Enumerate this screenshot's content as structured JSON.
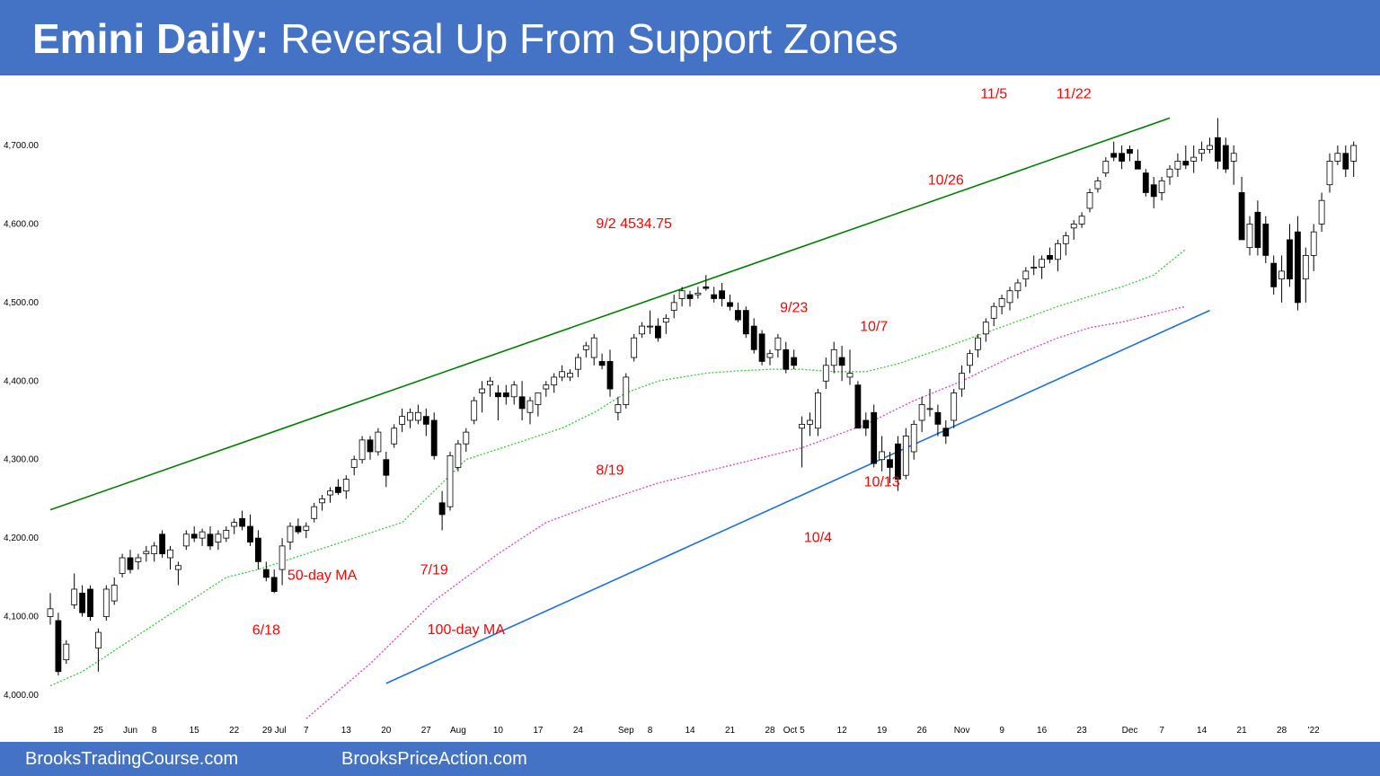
{
  "header": {
    "title_bold": "Emini Daily:",
    "title_rest": " Reversal Up From Support Zones"
  },
  "footer": {
    "left": "BrooksTradingCourse.com",
    "right": "BrooksPriceAction.com"
  },
  "colors": {
    "banner": "#4472c4",
    "trendline_top": "#008000",
    "trendline_bottom": "#1e6fe0",
    "ma50": "#33cc33",
    "ma100": "#e040c0",
    "annotation": "#ff0000"
  },
  "chart_data": {
    "type": "candlestick",
    "ylim": [
      3990,
      4740
    ],
    "y_ticks": [
      {
        "value": 4000,
        "label": "4,000.00"
      },
      {
        "value": 4100,
        "label": "4,100.00"
      },
      {
        "value": 4200,
        "label": "4,200.00"
      },
      {
        "value": 4300,
        "label": "4,300.00"
      },
      {
        "value": 4400,
        "label": "4,400.00"
      },
      {
        "value": 4500,
        "label": "4,500.00"
      },
      {
        "value": 4600,
        "label": "4,600.00"
      },
      {
        "value": 4700,
        "label": "4,700.00"
      }
    ],
    "x_ticks": [
      {
        "i": 1,
        "label": "18"
      },
      {
        "i": 6,
        "label": "25"
      },
      {
        "i": 10,
        "label": "Jun"
      },
      {
        "i": 13,
        "label": "8"
      },
      {
        "i": 18,
        "label": "15"
      },
      {
        "i": 23,
        "label": "22"
      },
      {
        "i": 28,
        "label": "29 Jul"
      },
      {
        "i": 32,
        "label": "7"
      },
      {
        "i": 37,
        "label": "13"
      },
      {
        "i": 42,
        "label": "20"
      },
      {
        "i": 47,
        "label": "27"
      },
      {
        "i": 51,
        "label": "Aug"
      },
      {
        "i": 56,
        "label": "10"
      },
      {
        "i": 61,
        "label": "17"
      },
      {
        "i": 66,
        "label": "24"
      },
      {
        "i": 72,
        "label": "Sep"
      },
      {
        "i": 75,
        "label": "8"
      },
      {
        "i": 80,
        "label": "14"
      },
      {
        "i": 85,
        "label": "21"
      },
      {
        "i": 90,
        "label": "28"
      },
      {
        "i": 93,
        "label": "Oct 5"
      },
      {
        "i": 99,
        "label": "12"
      },
      {
        "i": 104,
        "label": "19"
      },
      {
        "i": 109,
        "label": "26"
      },
      {
        "i": 114,
        "label": "Nov"
      },
      {
        "i": 119,
        "label": "9"
      },
      {
        "i": 124,
        "label": "16"
      },
      {
        "i": 129,
        "label": "23"
      },
      {
        "i": 135,
        "label": "Dec"
      },
      {
        "i": 139,
        "label": "7"
      },
      {
        "i": 144,
        "label": "14"
      },
      {
        "i": 149,
        "label": "21"
      },
      {
        "i": 154,
        "label": "28"
      },
      {
        "i": 158,
        "label": "'22"
      }
    ],
    "candles": [
      [
        4100,
        4130,
        4090,
        4110
      ],
      [
        4095,
        4105,
        4025,
        4030
      ],
      [
        4045,
        4070,
        4040,
        4065
      ],
      [
        4115,
        4155,
        4110,
        4135
      ],
      [
        4130,
        4140,
        4100,
        4105
      ],
      [
        4135,
        4140,
        4095,
        4100
      ],
      [
        4060,
        4085,
        4030,
        4080
      ],
      [
        4100,
        4140,
        4095,
        4135
      ],
      [
        4120,
        4150,
        4115,
        4140
      ],
      [
        4155,
        4180,
        4150,
        4175
      ],
      [
        4175,
        4185,
        4155,
        4160
      ],
      [
        4170,
        4180,
        4160,
        4175
      ],
      [
        4180,
        4190,
        4170,
        4183
      ],
      [
        4180,
        4195,
        4170,
        4190
      ],
      [
        4205,
        4210,
        4175,
        4180
      ],
      [
        4175,
        4190,
        4160,
        4185
      ],
      [
        4160,
        4170,
        4140,
        4165
      ],
      [
        4190,
        4210,
        4185,
        4205
      ],
      [
        4205,
        4215,
        4195,
        4200
      ],
      [
        4200,
        4212,
        4190,
        4208
      ],
      [
        4205,
        4215,
        4185,
        4190
      ],
      [
        4195,
        4210,
        4185,
        4205
      ],
      [
        4200,
        4215,
        4195,
        4210
      ],
      [
        4215,
        4225,
        4205,
        4220
      ],
      [
        4225,
        4235,
        4210,
        4215
      ],
      [
        4215,
        4230,
        4190,
        4195
      ],
      [
        4200,
        4210,
        4160,
        4170
      ],
      [
        4160,
        4170,
        4145,
        4150
      ],
      [
        4150,
        4160,
        4130,
        4132
      ],
      [
        4160,
        4200,
        4140,
        4190
      ],
      [
        4195,
        4220,
        4185,
        4215
      ],
      [
        4215,
        4225,
        4205,
        4208
      ],
      [
        4210,
        4220,
        4200,
        4215
      ],
      [
        4225,
        4245,
        4220,
        4240
      ],
      [
        4245,
        4255,
        4235,
        4250
      ],
      [
        4255,
        4265,
        4245,
        4260
      ],
      [
        4265,
        4275,
        4255,
        4258
      ],
      [
        4260,
        4280,
        4250,
        4275
      ],
      [
        4290,
        4305,
        4280,
        4300
      ],
      [
        4300,
        4330,
        4295,
        4325
      ],
      [
        4325,
        4330,
        4300,
        4310
      ],
      [
        4310,
        4340,
        4305,
        4335
      ],
      [
        4300,
        4310,
        4265,
        4280
      ],
      [
        4320,
        4345,
        4315,
        4340
      ],
      [
        4345,
        4365,
        4335,
        4355
      ],
      [
        4350,
        4365,
        4340,
        4360
      ],
      [
        4350,
        4370,
        4345,
        4360
      ],
      [
        4355,
        4365,
        4330,
        4345
      ],
      [
        4350,
        4360,
        4300,
        4305
      ],
      [
        4245,
        4260,
        4210,
        4230
      ],
      [
        4240,
        4310,
        4235,
        4305
      ],
      [
        4290,
        4325,
        4285,
        4320
      ],
      [
        4320,
        4340,
        4310,
        4335
      ],
      [
        4350,
        4380,
        4345,
        4375
      ],
      [
        4385,
        4400,
        4360,
        4390
      ],
      [
        4395,
        4405,
        4380,
        4400
      ],
      [
        4385,
        4395,
        4350,
        4380
      ],
      [
        4385,
        4395,
        4370,
        4380
      ],
      [
        4380,
        4400,
        4370,
        4395
      ],
      [
        4380,
        4400,
        4350,
        4365
      ],
      [
        4360,
        4380,
        4345,
        4375
      ],
      [
        4370,
        4385,
        4355,
        4385
      ],
      [
        4390,
        4400,
        4380,
        4395
      ],
      [
        4395,
        4410,
        4385,
        4405
      ],
      [
        4405,
        4420,
        4400,
        4412
      ],
      [
        4405,
        4415,
        4400,
        4410
      ],
      [
        4415,
        4435,
        4405,
        4430
      ],
      [
        4440,
        4450,
        4430,
        4445
      ],
      [
        4430,
        4460,
        4420,
        4455
      ],
      [
        4425,
        4435,
        4415,
        4420
      ],
      [
        4425,
        4440,
        4380,
        4390
      ],
      [
        4360,
        4380,
        4350,
        4370
      ],
      [
        4370,
        4410,
        4365,
        4405
      ],
      [
        4430,
        4460,
        4425,
        4455
      ],
      [
        4460,
        4475,
        4455,
        4470
      ],
      [
        4470,
        4490,
        4460,
        4470
      ],
      [
        4470,
        4480,
        4450,
        4455
      ],
      [
        4475,
        4485,
        4460,
        4480
      ],
      [
        4490,
        4510,
        4480,
        4500
      ],
      [
        4505,
        4520,
        4495,
        4515
      ],
      [
        4510,
        4515,
        4495,
        4505
      ],
      [
        4510,
        4520,
        4505,
        4512
      ],
      [
        4520,
        4535,
        4515,
        4518
      ],
      [
        4510,
        4520,
        4500,
        4505
      ],
      [
        4515,
        4525,
        4495,
        4505
      ],
      [
        4500,
        4510,
        4490,
        4495
      ],
      [
        4490,
        4500,
        4475,
        4478
      ],
      [
        4490,
        4495,
        4455,
        4460
      ],
      [
        4470,
        4480,
        4435,
        4440
      ],
      [
        4460,
        4465,
        4420,
        4425
      ],
      [
        4430,
        4440,
        4420,
        4435
      ],
      [
        4440,
        4460,
        4430,
        4455
      ],
      [
        4440,
        4450,
        4410,
        4415
      ],
      [
        4430,
        4440,
        4415,
        4420
      ],
      [
        4340,
        4355,
        4290,
        4345
      ],
      [
        4345,
        4360,
        4330,
        4350
      ],
      [
        4340,
        4390,
        4330,
        4385
      ],
      [
        4400,
        4430,
        4390,
        4420
      ],
      [
        4420,
        4450,
        4410,
        4440
      ],
      [
        4430,
        4445,
        4400,
        4420
      ],
      [
        4405,
        4440,
        4395,
        4410
      ],
      [
        4395,
        4400,
        4340,
        4340
      ],
      [
        4350,
        4360,
        4330,
        4340
      ],
      [
        4360,
        4370,
        4290,
        4295
      ],
      [
        4300,
        4330,
        4285,
        4310
      ],
      [
        4300,
        4310,
        4270,
        4290
      ],
      [
        4320,
        4330,
        4260,
        4275
      ],
      [
        4280,
        4340,
        4275,
        4330
      ],
      [
        4310,
        4350,
        4300,
        4345
      ],
      [
        4350,
        4380,
        4335,
        4370
      ],
      [
        4365,
        4390,
        4355,
        4365
      ],
      [
        4360,
        4370,
        4330,
        4345
      ],
      [
        4340,
        4350,
        4320,
        4330
      ],
      [
        4350,
        4390,
        4340,
        4385
      ],
      [
        4390,
        4420,
        4380,
        4410
      ],
      [
        4420,
        4440,
        4410,
        4435
      ],
      [
        4440,
        4460,
        4430,
        4455
      ],
      [
        4460,
        4480,
        4450,
        4475
      ],
      [
        4480,
        4500,
        4470,
        4495
      ],
      [
        4495,
        4510,
        4485,
        4505
      ],
      [
        4500,
        4520,
        4490,
        4515
      ],
      [
        4515,
        4530,
        4505,
        4525
      ],
      [
        4530,
        4545,
        4520,
        4540
      ],
      [
        4545,
        4560,
        4535,
        4545
      ],
      [
        4545,
        4560,
        4530,
        4555
      ],
      [
        4560,
        4570,
        4550,
        4555
      ],
      [
        4555,
        4580,
        4540,
        4575
      ],
      [
        4575,
        4590,
        4560,
        4585
      ],
      [
        4595,
        4605,
        4580,
        4600
      ],
      [
        4600,
        4615,
        4595,
        4610
      ],
      [
        4620,
        4645,
        4615,
        4640
      ],
      [
        4645,
        4660,
        4640,
        4655
      ],
      [
        4665,
        4685,
        4660,
        4680
      ],
      [
        4690,
        4705,
        4680,
        4685
      ],
      [
        4690,
        4700,
        4670,
        4680
      ],
      [
        4695,
        4700,
        4680,
        4690
      ],
      [
        4680,
        4695,
        4670,
        4670
      ],
      [
        4665,
        4670,
        4635,
        4640
      ],
      [
        4650,
        4660,
        4620,
        4635
      ],
      [
        4640,
        4660,
        4630,
        4655
      ],
      [
        4660,
        4675,
        4650,
        4670
      ],
      [
        4670,
        4690,
        4660,
        4680
      ],
      [
        4680,
        4700,
        4670,
        4675
      ],
      [
        4680,
        4700,
        4665,
        4685
      ],
      [
        4690,
        4705,
        4680,
        4695
      ],
      [
        4695,
        4710,
        4690,
        4700
      ],
      [
        4710,
        4735,
        4670,
        4680
      ],
      [
        4700,
        4710,
        4665,
        4670
      ],
      [
        4680,
        4700,
        4650,
        4690
      ],
      [
        4640,
        4660,
        4580,
        4580
      ],
      [
        4570,
        4610,
        4560,
        4600
      ],
      [
        4615,
        4630,
        4560,
        4570
      ],
      [
        4600,
        4610,
        4550,
        4560
      ],
      [
        4550,
        4560,
        4510,
        4520
      ],
      [
        4530,
        4560,
        4500,
        4540
      ],
      [
        4580,
        4600,
        4520,
        4530
      ],
      [
        4590,
        4610,
        4490,
        4500
      ],
      [
        4530,
        4570,
        4500,
        4560
      ],
      [
        4560,
        4600,
        4540,
        4590
      ],
      [
        4600,
        4640,
        4590,
        4630
      ],
      [
        4650,
        4690,
        4640,
        4680
      ],
      [
        4680,
        4700,
        4675,
        4690
      ],
      [
        4690,
        4700,
        4660,
        4670
      ],
      [
        4680,
        4705,
        4660,
        4700
      ]
    ],
    "ma50": [
      [
        0,
        4012
      ],
      [
        4,
        4030
      ],
      [
        10,
        4070
      ],
      [
        16,
        4110
      ],
      [
        22,
        4150
      ],
      [
        26,
        4160
      ],
      [
        32,
        4180
      ],
      [
        38,
        4200
      ],
      [
        44,
        4220
      ],
      [
        48,
        4260
      ],
      [
        52,
        4300
      ],
      [
        58,
        4320
      ],
      [
        64,
        4340
      ],
      [
        68,
        4360
      ],
      [
        72,
        4385
      ],
      [
        76,
        4400
      ],
      [
        82,
        4410
      ],
      [
        86,
        4413
      ],
      [
        90,
        4415
      ],
      [
        94,
        4415
      ],
      [
        98,
        4412
      ],
      [
        102,
        4412
      ],
      [
        106,
        4422
      ],
      [
        110,
        4436
      ],
      [
        116,
        4458
      ],
      [
        122,
        4480
      ],
      [
        126,
        4495
      ],
      [
        130,
        4508
      ],
      [
        134,
        4520
      ],
      [
        138,
        4535
      ],
      [
        142,
        4568
      ]
    ],
    "ma100": [
      [
        32,
        3970
      ],
      [
        40,
        4040
      ],
      [
        48,
        4120
      ],
      [
        56,
        4180
      ],
      [
        62,
        4220
      ],
      [
        70,
        4250
      ],
      [
        76,
        4270
      ],
      [
        82,
        4285
      ],
      [
        88,
        4300
      ],
      [
        94,
        4315
      ],
      [
        98,
        4330
      ],
      [
        102,
        4345
      ],
      [
        108,
        4375
      ],
      [
        114,
        4400
      ],
      [
        120,
        4430
      ],
      [
        126,
        4455
      ],
      [
        130,
        4468
      ],
      [
        134,
        4475
      ],
      [
        138,
        4485
      ],
      [
        142,
        4495
      ]
    ],
    "trendlines": [
      {
        "name": "upper",
        "from": [
          0,
          4236
        ],
        "to": [
          140,
          4735
        ]
      },
      {
        "name": "lower",
        "from": [
          42,
          4015
        ],
        "to": [
          145,
          4490
        ]
      }
    ],
    "annotations": [
      {
        "text": "11/5",
        "i": 118,
        "y": 4760
      },
      {
        "text": "11/22",
        "i": 128,
        "y": 4760
      },
      {
        "text": "10/26",
        "i": 112,
        "y": 4650
      },
      {
        "text": "9/2 4534.75",
        "i": 73,
        "y": 4595
      },
      {
        "text": "9/23",
        "i": 93,
        "y": 4488
      },
      {
        "text": "10/7",
        "i": 103,
        "y": 4464
      },
      {
        "text": "8/19",
        "i": 70,
        "y": 4281
      },
      {
        "text": "10/13",
        "i": 104,
        "y": 4266
      },
      {
        "text": "10/4",
        "i": 96,
        "y": 4195
      },
      {
        "text": "7/19",
        "i": 48,
        "y": 4154
      },
      {
        "text": "6/18",
        "i": 27,
        "y": 4077
      },
      {
        "text": "50-day MA",
        "i": 34,
        "y": 4147,
        "style": "ma50"
      },
      {
        "text": "100-day MA",
        "i": 52,
        "y": 4078,
        "style": "ma100"
      }
    ]
  }
}
